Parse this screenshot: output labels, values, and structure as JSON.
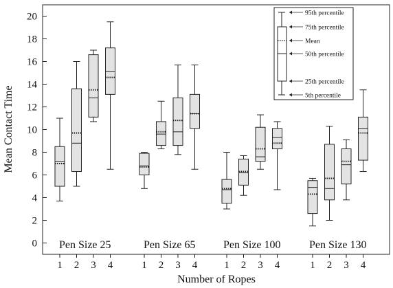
{
  "chart_data": {
    "type": "box",
    "xlabel": "Number of Ropes",
    "ylabel": "Mean Contact Time",
    "ylim": [
      -1,
      21
    ],
    "yticks": [
      0,
      2,
      4,
      6,
      8,
      10,
      12,
      14,
      16,
      18,
      20
    ],
    "grid": false,
    "colors": {
      "box_fill": "#e3e3e3",
      "stroke": "#222222"
    },
    "groups": [
      {
        "label": "Pen Size 25",
        "boxes": [
          {
            "ropes": "1",
            "p5": 3.7,
            "p25": 5.0,
            "median": 7.2,
            "mean": 7.0,
            "p75": 8.5,
            "p95": 11.0
          },
          {
            "ropes": "2",
            "p5": 5.0,
            "p25": 6.3,
            "median": 8.8,
            "mean": 9.7,
            "p75": 13.6,
            "p95": 16.0
          },
          {
            "ropes": "3",
            "p5": 10.7,
            "p25": 11.1,
            "median": 12.8,
            "mean": 13.5,
            "p75": 16.6,
            "p95": 17.0
          },
          {
            "ropes": "4",
            "p5": 6.5,
            "p25": 13.1,
            "median": 15.1,
            "mean": 14.6,
            "p75": 17.2,
            "p95": 19.5
          }
        ]
      },
      {
        "label": "Pen Size 65",
        "boxes": [
          {
            "ropes": "1",
            "p5": 4.8,
            "p25": 6.0,
            "median": 6.8,
            "mean": 6.7,
            "p75": 7.9,
            "p95": 8.0
          },
          {
            "ropes": "2",
            "p5": 8.3,
            "p25": 8.6,
            "median": 9.6,
            "mean": 9.8,
            "p75": 10.7,
            "p95": 12.5
          },
          {
            "ropes": "3",
            "p5": 7.8,
            "p25": 8.6,
            "median": 9.8,
            "mean": 10.8,
            "p75": 12.8,
            "p95": 15.7
          },
          {
            "ropes": "4",
            "p5": 6.5,
            "p25": 10.1,
            "median": 11.4,
            "mean": 11.4,
            "p75": 13.1,
            "p95": 15.7
          }
        ]
      },
      {
        "label": "Pen Size 100",
        "boxes": [
          {
            "ropes": "1",
            "p5": 3.0,
            "p25": 3.5,
            "median": 4.7,
            "mean": 4.8,
            "p75": 5.6,
            "p95": 8.0
          },
          {
            "ropes": "2",
            "p5": 4.2,
            "p25": 5.1,
            "median": 6.2,
            "mean": 6.3,
            "p75": 7.4,
            "p95": 7.7
          },
          {
            "ropes": "3",
            "p5": 6.5,
            "p25": 7.2,
            "median": 7.6,
            "mean": 8.3,
            "p75": 10.2,
            "p95": 11.3
          },
          {
            "ropes": "4",
            "p5": 4.7,
            "p25": 8.3,
            "median": 9.3,
            "mean": 8.8,
            "p75": 10.1,
            "p95": 10.7
          }
        ]
      },
      {
        "label": "Pen Size 130",
        "boxes": [
          {
            "ropes": "1",
            "p5": 1.5,
            "p25": 2.6,
            "median": 4.9,
            "mean": 4.3,
            "p75": 5.5,
            "p95": 5.7
          },
          {
            "ropes": "2",
            "p5": 2.0,
            "p25": 3.8,
            "median": 4.8,
            "mean": 5.7,
            "p75": 8.7,
            "p95": 10.3
          },
          {
            "ropes": "3",
            "p5": 3.8,
            "p25": 5.2,
            "median": 6.9,
            "mean": 7.2,
            "p75": 8.3,
            "p95": 9.1
          },
          {
            "ropes": "4",
            "p5": 6.3,
            "p25": 7.3,
            "median": 10.1,
            "mean": 9.7,
            "p75": 11.1,
            "p95": 13.5
          }
        ]
      }
    ],
    "legend": {
      "placement": "top-right",
      "entries": {
        "p95": "95th percentile",
        "p75": "75th percentile",
        "mean": "Mean",
        "median": "50th percentile",
        "p25": "25th percentile",
        "p5": "5th percentile"
      }
    }
  }
}
